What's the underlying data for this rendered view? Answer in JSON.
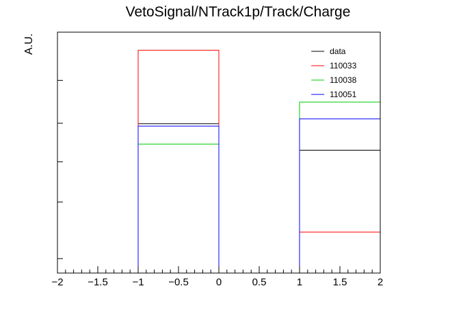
{
  "chart_data": {
    "type": "step-histogram",
    "title": "VetoSignal/NTrack1p/Track/Charge",
    "xlabel": "",
    "ylabel": "A.U.",
    "xlim": [
      -2,
      2
    ],
    "ylim": [
      0,
      1
    ],
    "log_y": true,
    "x_tick_labels": [
      "−2",
      "−1.5",
      "−1",
      "−0.5",
      "0",
      "0.5",
      "1",
      "1.5",
      "2"
    ],
    "x_tick_values": [
      -2,
      -1.5,
      -1,
      -0.5,
      0,
      0.5,
      1,
      1.5,
      2
    ],
    "y_major_ticks": [
      0.8,
      0.622,
      0.462,
      0.295,
      0.06
    ],
    "legend_position": "top-right",
    "bins": [
      [
        -2,
        -1
      ],
      [
        -1,
        0
      ],
      [
        0,
        1
      ],
      [
        1,
        2
      ]
    ],
    "series": [
      {
        "name": "data",
        "color": "#000000",
        "values": [
          0,
          0.62,
          0,
          0.51
        ]
      },
      {
        "name": "110033",
        "color": "#ff0000",
        "values": [
          0,
          0.925,
          0,
          0.17
        ]
      },
      {
        "name": "110038",
        "color": "#00cc00",
        "values": [
          0,
          0.535,
          0,
          0.71
        ]
      },
      {
        "name": "110051",
        "color": "#0000ff",
        "values": [
          0,
          0.61,
          0,
          0.64
        ]
      }
    ]
  }
}
